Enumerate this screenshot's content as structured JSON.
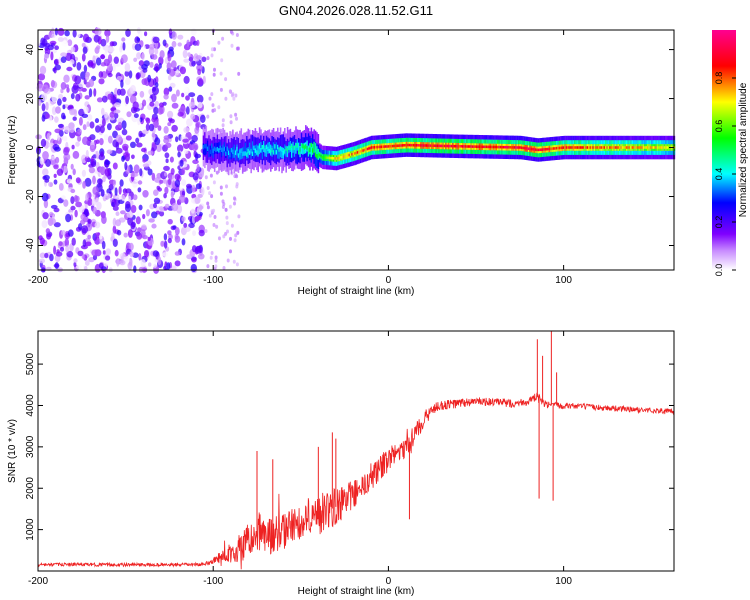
{
  "title": "GN04.2026.028.11.52.G11",
  "chart_data": [
    {
      "type": "heatmap",
      "title": "GN04.2026.028.11.52.G11",
      "xlabel": "Height of straight line (km)",
      "ylabel": "Frequency (Hz)",
      "xlim": [
        -200,
        163
      ],
      "ylim": [
        -50,
        48
      ],
      "xticks": [
        -200,
        -100,
        0,
        100
      ],
      "xtick_labels": [
        "-200",
        "-100",
        "0",
        "100"
      ],
      "yticks": [
        -40,
        -20,
        0,
        20,
        40
      ],
      "ytick_labels": [
        "-40",
        "-20",
        "0",
        "20",
        "40"
      ],
      "colorbar": {
        "label": "Normalized spectral amplitude",
        "range": [
          0,
          1
        ],
        "ticks": [
          0.0,
          0.2,
          0.4,
          0.6,
          0.8
        ],
        "tick_labels": [
          "0.0",
          "0.2",
          "0.4",
          "0.6",
          "0.8"
        ],
        "colors": [
          "#ffffff",
          "#7f00ff",
          "#0000ff",
          "#00ffff",
          "#00ff00",
          "#ffff00",
          "#ff0000",
          "#ff00a0"
        ]
      },
      "noise_region_km": [
        -200,
        -105
      ],
      "noise_amplitude": 0.15,
      "signal_track": [
        {
          "km": -106,
          "freq": 0.0,
          "amp": 0.35
        },
        {
          "km": -90,
          "freq": -2.0,
          "amp": 0.4
        },
        {
          "km": -75,
          "freq": -1.0,
          "amp": 0.45
        },
        {
          "km": -60,
          "freq": -1.0,
          "amp": 0.45
        },
        {
          "km": -45,
          "freq": 0.0,
          "amp": 0.55
        },
        {
          "km": -38,
          "freq": -4.0,
          "amp": 0.6
        },
        {
          "km": -30,
          "freq": -4.5,
          "amp": 0.8
        },
        {
          "km": -20,
          "freq": -2.5,
          "amp": 0.85
        },
        {
          "km": -10,
          "freq": 0.0,
          "amp": 0.9
        },
        {
          "km": 0,
          "freq": 0.5,
          "amp": 0.9
        },
        {
          "km": 10,
          "freq": 1.0,
          "amp": 0.95
        },
        {
          "km": 40,
          "freq": 0.5,
          "amp": 0.95
        },
        {
          "km": 75,
          "freq": 0.0,
          "amp": 0.95
        },
        {
          "km": 85,
          "freq": -1.0,
          "amp": 0.95
        },
        {
          "km": 100,
          "freq": 0.0,
          "amp": 0.9
        },
        {
          "km": 163,
          "freq": 0.0,
          "amp": 0.75
        }
      ]
    },
    {
      "type": "line",
      "xlabel": "Height of straight line (km)",
      "ylabel": "SNR (10 * v/v)",
      "xlim": [
        -200,
        163
      ],
      "ylim": [
        0,
        5800
      ],
      "xticks": [
        -200,
        -100,
        0,
        100
      ],
      "xtick_labels": [
        "-200",
        "-100",
        "0",
        "100"
      ],
      "yticks": [
        1000,
        2000,
        3000,
        4000,
        5000
      ],
      "ytick_labels": [
        "1000",
        "2000",
        "3000",
        "4000",
        "5000"
      ],
      "line_color": "#ee2222",
      "series": [
        {
          "name": "SNR",
          "x": [
            -200,
            -180,
            -160,
            -140,
            -120,
            -105,
            -100,
            -95,
            -90,
            -85,
            -80,
            -75,
            -70,
            -65,
            -60,
            -55,
            -50,
            -45,
            -40,
            -35,
            -30,
            -25,
            -20,
            -15,
            -10,
            -5,
            0,
            5,
            10,
            15,
            20,
            25,
            30,
            40,
            50,
            60,
            70,
            80,
            85,
            90,
            95,
            100,
            110,
            120,
            130,
            140,
            150,
            163
          ],
          "values": [
            150,
            160,
            150,
            150,
            150,
            160,
            250,
            350,
            450,
            550,
            700,
            800,
            850,
            900,
            950,
            1100,
            1200,
            1300,
            1350,
            1450,
            1550,
            1700,
            1850,
            2000,
            2200,
            2500,
            2700,
            2850,
            3000,
            3300,
            3650,
            3900,
            4000,
            4050,
            4100,
            4080,
            4050,
            4100,
            4200,
            4000,
            4000,
            4000,
            3980,
            3950,
            3930,
            3900,
            3880,
            3850
          ],
          "noise": [
            40,
            40,
            40,
            40,
            40,
            40,
            80,
            150,
            250,
            350,
            450,
            450,
            500,
            450,
            450,
            400,
            450,
            450,
            500,
            500,
            450,
            400,
            350,
            300,
            300,
            300,
            300,
            250,
            250,
            250,
            200,
            150,
            120,
            120,
            100,
            100,
            100,
            100,
            120,
            100,
            80,
            80,
            70,
            70,
            70,
            70,
            70,
            70
          ]
        }
      ],
      "spikes": [
        {
          "x": -75,
          "value": 2900
        },
        {
          "x": -66,
          "value": 2700
        },
        {
          "x": -40,
          "value": 3000
        },
        {
          "x": -32,
          "value": 3350
        },
        {
          "x": -30,
          "value": 3200
        },
        {
          "x": 12,
          "value": 1250
        },
        {
          "x": 85,
          "value": 5600
        },
        {
          "x": 86,
          "value": 1750
        },
        {
          "x": 88,
          "value": 5200
        },
        {
          "x": 93,
          "value": 5800
        },
        {
          "x": 94,
          "value": 1700
        },
        {
          "x": 96,
          "value": 4800
        }
      ]
    }
  ]
}
